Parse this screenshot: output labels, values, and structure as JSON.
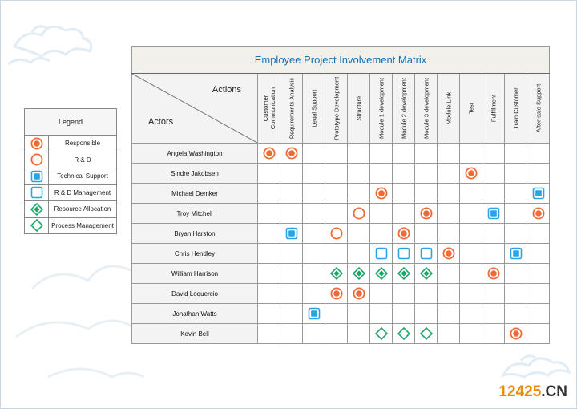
{
  "matrix": {
    "title": "Employee Project Involvement Matrix",
    "axis_actions": "Actions",
    "axis_actors": "Actors",
    "columns": [
      "Customer Communication",
      "Requirements Analysis",
      "Legal Support",
      "Prototype Development",
      "Structure",
      "Module 1 development",
      "Module 2 development",
      "Module 3 development",
      "Module Link",
      "Test",
      "Fulfillment",
      "Train Customer",
      "After-sale Support"
    ],
    "rows": [
      {
        "actor": "Angela Washington",
        "cells": [
          "responsible",
          "responsible",
          "",
          "",
          "",
          "",
          "",
          "",
          "",
          "",
          "",
          "",
          ""
        ]
      },
      {
        "actor": "Sindre Jakobsen",
        "cells": [
          "",
          "",
          "",
          "",
          "",
          "",
          "",
          "",
          "",
          "responsible",
          "",
          "",
          ""
        ]
      },
      {
        "actor": "Michael Demker",
        "cells": [
          "",
          "",
          "",
          "",
          "",
          "responsible",
          "",
          "",
          "",
          "",
          "",
          "",
          "technical-support"
        ]
      },
      {
        "actor": "Troy Mitchell",
        "cells": [
          "",
          "",
          "",
          "",
          "rnd",
          "",
          "",
          "responsible",
          "",
          "",
          "technical-support",
          "",
          "responsible"
        ]
      },
      {
        "actor": "Bryan Harston",
        "cells": [
          "",
          "technical-support",
          "",
          "rnd",
          "",
          "",
          "responsible",
          "",
          "",
          "",
          "",
          "",
          ""
        ]
      },
      {
        "actor": "Chris Hendley",
        "cells": [
          "",
          "",
          "",
          "",
          "",
          "rnd-management",
          "rnd-management",
          "rnd-management",
          "responsible",
          "",
          "",
          "technical-support",
          ""
        ]
      },
      {
        "actor": "William Harrison",
        "cells": [
          "",
          "",
          "",
          "resource-allocation",
          "resource-allocation",
          "resource-allocation",
          "resource-allocation",
          "resource-allocation",
          "",
          "",
          "responsible",
          "",
          ""
        ]
      },
      {
        "actor": "David Loquercio",
        "cells": [
          "",
          "",
          "",
          "responsible",
          "responsible",
          "",
          "",
          "",
          "",
          "",
          "",
          "",
          ""
        ]
      },
      {
        "actor": "Jonathan Watts",
        "cells": [
          "",
          "",
          "technical-support",
          "",
          "",
          "",
          "",
          "",
          "",
          "",
          "",
          "",
          ""
        ]
      },
      {
        "actor": "Kevin Bell",
        "cells": [
          "",
          "",
          "",
          "",
          "",
          "process-management",
          "process-management",
          "process-management",
          "",
          "",
          "",
          "responsible",
          ""
        ]
      }
    ]
  },
  "legend": {
    "title": "Legend",
    "items": [
      {
        "symbol": "responsible",
        "label": "Responsible"
      },
      {
        "symbol": "rnd",
        "label": "R & D"
      },
      {
        "symbol": "technical-support",
        "label": "Technical Support"
      },
      {
        "symbol": "rnd-management",
        "label": "R & D Management"
      },
      {
        "symbol": "resource-allocation",
        "label": "Resource Allocation"
      },
      {
        "symbol": "process-management",
        "label": "Process Management"
      }
    ]
  },
  "watermark": {
    "number": "12425",
    "domain": ".CN"
  },
  "colors": {
    "orange": "#f06a35",
    "blue": "#2aa3e0",
    "green": "#20a86b",
    "title_blue": "#1d6fa8",
    "cloud": "#e4eef6"
  }
}
